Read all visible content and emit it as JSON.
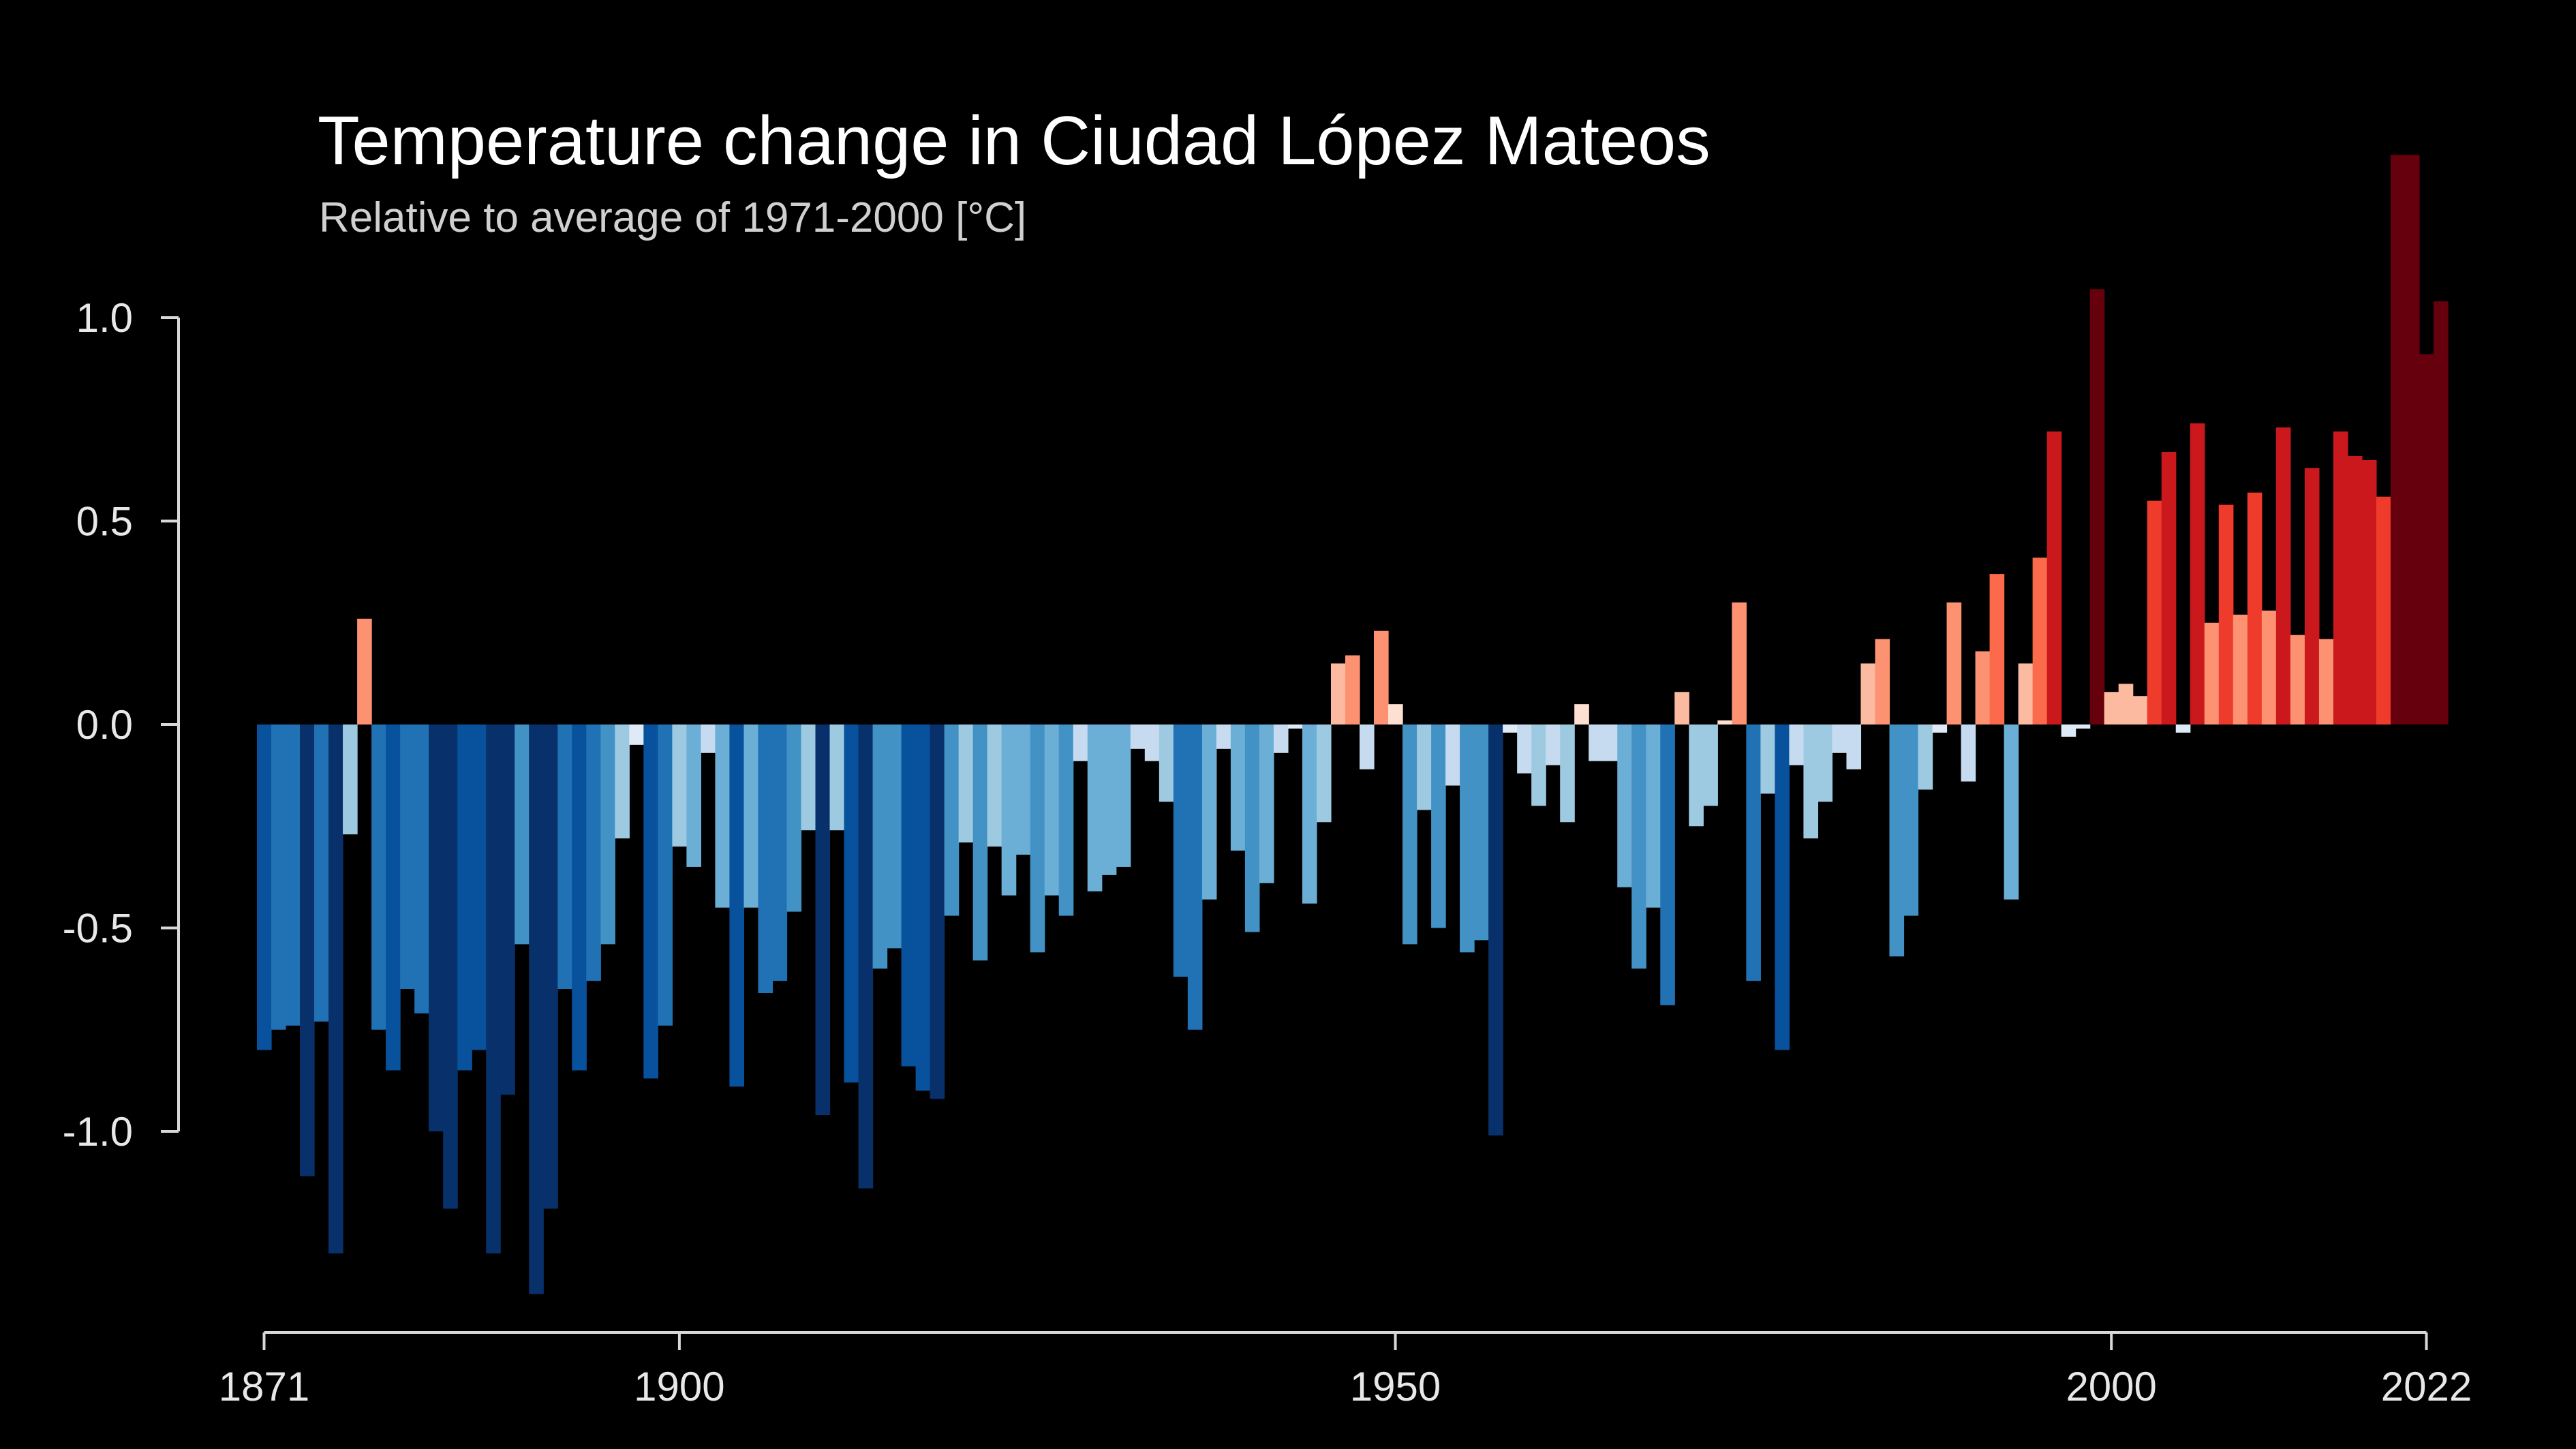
{
  "chart_data": {
    "type": "bar",
    "title": "Temperature change in Ciudad López Mateos",
    "subtitle": "Relative to average of 1971-2000  [°C]",
    "xlabel": "",
    "ylabel": "",
    "x_start": 1871,
    "x_end": 2022,
    "xlim": [
      1871,
      2022
    ],
    "ylim": [
      -1.4,
      1.4
    ],
    "x_ticks": [
      "1871",
      "1900",
      "1950",
      "2000",
      "2022"
    ],
    "y_ticks": [
      "1.0",
      "0.5",
      "0.0",
      "-0.5",
      "-1.0"
    ],
    "grid": false,
    "legend": "none",
    "values": [
      -0.8,
      -0.75,
      -0.74,
      -1.11,
      -0.73,
      -1.3,
      -0.27,
      0.26,
      -0.75,
      -0.85,
      -0.65,
      -0.71,
      -1.0,
      -1.19,
      -0.85,
      -0.8,
      -1.3,
      -0.91,
      -0.54,
      -1.4,
      -1.19,
      -0.65,
      -0.85,
      -0.63,
      -0.54,
      -0.28,
      -0.05,
      -0.87,
      -0.74,
      -0.3,
      -0.35,
      -0.07,
      -0.45,
      -0.89,
      -0.45,
      -0.66,
      -0.63,
      -0.46,
      -0.26,
      -0.96,
      -0.26,
      -0.88,
      -1.14,
      -0.6,
      -0.55,
      -0.84,
      -0.9,
      -0.92,
      -0.47,
      -0.29,
      -0.58,
      -0.3,
      -0.42,
      -0.32,
      -0.56,
      -0.42,
      -0.47,
      -0.09,
      -0.41,
      -0.37,
      -0.35,
      -0.06,
      -0.09,
      -0.19,
      -0.62,
      -0.75,
      -0.43,
      -0.06,
      -0.31,
      -0.51,
      -0.39,
      -0.07,
      -0.01,
      -0.44,
      -0.24,
      0.15,
      0.17,
      -0.11,
      0.23,
      0.05,
      -0.54,
      -0.21,
      -0.5,
      -0.15,
      -0.56,
      -0.53,
      -1.01,
      -0.02,
      -0.12,
      -0.2,
      -0.1,
      -0.24,
      0.05,
      -0.09,
      -0.09,
      -0.4,
      -0.6,
      -0.45,
      -0.69,
      0.08,
      -0.25,
      -0.2,
      0.01,
      0.3,
      -0.63,
      -0.17,
      -0.8,
      -0.1,
      -0.28,
      -0.19,
      -0.07,
      -0.11,
      0.15,
      0.21,
      -0.57,
      -0.47,
      -0.16,
      -0.02,
      0.3,
      -0.14,
      0.18,
      0.37,
      -0.43,
      0.15,
      0.41,
      0.72,
      -0.03,
      -0.01,
      1.07,
      0.08,
      0.1,
      0.07,
      0.55,
      0.67,
      -0.02,
      0.74,
      0.25,
      0.54,
      0.27,
      0.57,
      0.28,
      0.73,
      0.22,
      0.63,
      0.21,
      0.72,
      0.66,
      0.65,
      0.56,
      1.4,
      1.4,
      0.91,
      1.04
    ]
  }
}
